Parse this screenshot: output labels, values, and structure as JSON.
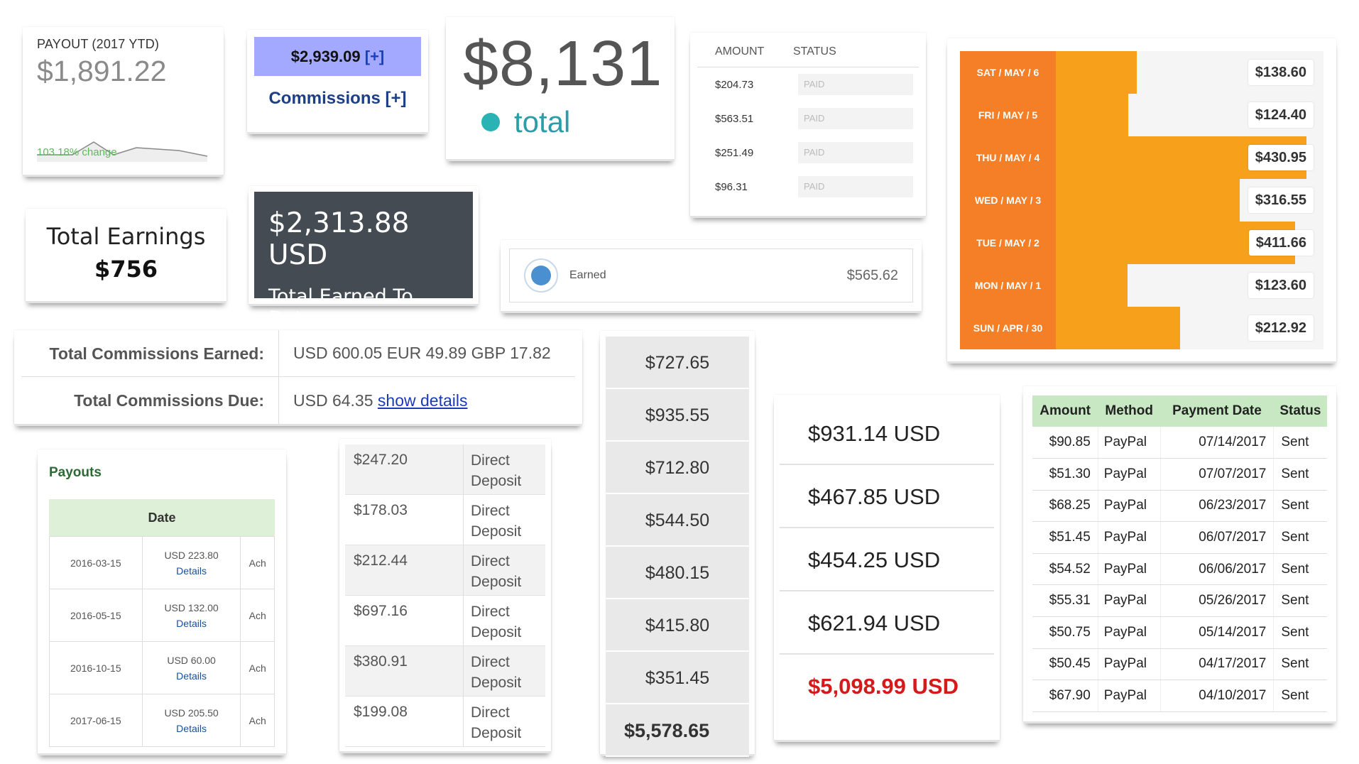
{
  "payout_widget": {
    "label": "PAYOUT (2017 YTD)",
    "amount": "$1,891.22",
    "change": "103.18% change",
    "sparkline_color": "#888888"
  },
  "commissions_widget": {
    "amount": "$2,939.09",
    "plus": "[+]",
    "link": "Commissions [+]",
    "accent": "#a3a9ff"
  },
  "total_widget": {
    "amount": "$8,131",
    "label": "total",
    "dot_color": "#2ab3b5"
  },
  "amount_status": {
    "headers": [
      "AMOUNT",
      "STATUS"
    ],
    "rows": [
      {
        "amount": "$204.73",
        "status": "PAID"
      },
      {
        "amount": "$563.51",
        "status": "PAID"
      },
      {
        "amount": "$251.49",
        "status": "PAID"
      },
      {
        "amount": "$96.31",
        "status": "PAID"
      }
    ]
  },
  "daily_bars": {
    "bar_color": "#f7a01c",
    "label_color": "#f47f26",
    "max": 460,
    "rows": [
      {
        "day": "SAT / MAY / 6",
        "value": 138.6,
        "label": "$138.60"
      },
      {
        "day": "FRI / MAY / 5",
        "value": 124.4,
        "label": "$124.40"
      },
      {
        "day": "THU / MAY / 4",
        "value": 430.95,
        "label": "$430.95"
      },
      {
        "day": "WED / MAY / 3",
        "value": 316.55,
        "label": "$316.55"
      },
      {
        "day": "TUE / MAY / 2",
        "value": 411.66,
        "label": "$411.66"
      },
      {
        "day": "MON / MAY / 1",
        "value": 123.6,
        "label": "$123.60"
      },
      {
        "day": "SUN / APR / 30",
        "value": 212.92,
        "label": "$212.92"
      }
    ]
  },
  "total_earnings": {
    "title": "Total Earnings",
    "value": "$756"
  },
  "earned_to_date": {
    "amount": "$2,313.88 USD",
    "label": "Total Earned To Date",
    "bg": "#444b52"
  },
  "earned_row": {
    "icon": "coins-icon",
    "label": "Earned",
    "value": "$565.62"
  },
  "commission_totals": {
    "earned_label": "Total Commissions Earned:",
    "earned_value": "USD 600.05 EUR 49.89 GBP 17.82",
    "due_label": "Total Commissions Due:",
    "due_value": "USD 64.35",
    "due_link": "show details"
  },
  "payouts": {
    "title": "Payouts",
    "column": "Date",
    "rows": [
      {
        "date": "2016-03-15",
        "amount": "USD 223.80",
        "details": "Details",
        "method": "Ach"
      },
      {
        "date": "2016-05-15",
        "amount": "USD 132.00",
        "details": "Details",
        "method": "Ach"
      },
      {
        "date": "2016-10-15",
        "amount": "USD 60.00",
        "details": "Details",
        "method": "Ach"
      },
      {
        "date": "2017-06-15",
        "amount": "USD 205.50",
        "details": "Details",
        "method": "Ach"
      }
    ]
  },
  "direct_deposits": {
    "method_line1": "Direct",
    "method_line2": "Deposit",
    "rows": [
      {
        "amount": "$247.20"
      },
      {
        "amount": "$178.03"
      },
      {
        "amount": "$212.44"
      },
      {
        "amount": "$697.16"
      },
      {
        "amount": "$380.91"
      },
      {
        "amount": "$199.08"
      }
    ]
  },
  "stacked_values": {
    "rows": [
      "$727.65",
      "$935.55",
      "$712.80",
      "$544.50",
      "$480.15",
      "$415.80",
      "$351.45"
    ],
    "total": "$5,578.65"
  },
  "usd_list": {
    "rows": [
      "$931.14 USD",
      "$467.85 USD",
      "$454.25 USD",
      "$621.94 USD"
    ],
    "total": "$5,098.99 USD",
    "total_color": "#d51a1a"
  },
  "payments_table": {
    "headers": [
      "Amount",
      "Method",
      "Payment Date",
      "Status"
    ],
    "rows": [
      {
        "amount": "$90.85",
        "method": "PayPal",
        "date": "07/14/2017",
        "status": "Sent"
      },
      {
        "amount": "$51.30",
        "method": "PayPal",
        "date": "07/07/2017",
        "status": "Sent"
      },
      {
        "amount": "$68.25",
        "method": "PayPal",
        "date": "06/23/2017",
        "status": "Sent"
      },
      {
        "amount": "$51.45",
        "method": "PayPal",
        "date": "06/07/2017",
        "status": "Sent"
      },
      {
        "amount": "$54.52",
        "method": "PayPal",
        "date": "06/06/2017",
        "status": "Sent"
      },
      {
        "amount": "$55.31",
        "method": "PayPal",
        "date": "05/26/2017",
        "status": "Sent"
      },
      {
        "amount": "$50.75",
        "method": "PayPal",
        "date": "05/14/2017",
        "status": "Sent"
      },
      {
        "amount": "$50.45",
        "method": "PayPal",
        "date": "04/17/2017",
        "status": "Sent"
      },
      {
        "amount": "$67.90",
        "method": "PayPal",
        "date": "04/10/2017",
        "status": "Sent"
      }
    ],
    "header_bg": "#c7e8c2"
  }
}
